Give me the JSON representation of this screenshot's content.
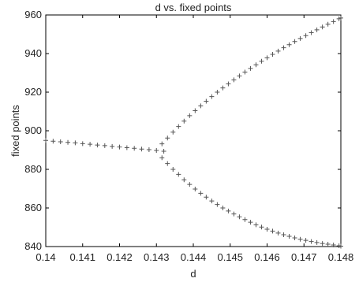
{
  "chart_data": {
    "type": "scatter",
    "title": "d vs. fixed points",
    "xlabel": "d",
    "ylabel": "fixed points",
    "xlim": [
      0.14,
      0.148
    ],
    "ylim": [
      840,
      960
    ],
    "xticks": [
      0.14,
      0.141,
      0.142,
      0.143,
      0.144,
      0.145,
      0.146,
      0.147,
      0.148
    ],
    "xtick_labels": [
      "0.14",
      "0.141",
      "0.142",
      "0.143",
      "0.144",
      "0.145",
      "0.146",
      "0.147",
      "0.148"
    ],
    "yticks": [
      840,
      860,
      880,
      900,
      920,
      940,
      960
    ],
    "ytick_labels": [
      "840",
      "860",
      "880",
      "900",
      "920",
      "940",
      "960"
    ],
    "grid": false,
    "marker": "+",
    "marker_color": "#555555",
    "series": [
      {
        "x": [
          0.14,
          0.1402,
          0.1404,
          0.1406,
          0.1408,
          0.141,
          0.1412,
          0.1414,
          0.1416,
          0.1418,
          0.142,
          0.1422,
          0.1424,
          0.1426,
          0.1428,
          0.143,
          0.1432
        ],
        "y": [
          895.0,
          894.6,
          894.3,
          894.0,
          893.7,
          893.3,
          893.0,
          892.6,
          892.3,
          891.9,
          891.6,
          891.2,
          890.9,
          890.5,
          890.2,
          889.8,
          889.4
        ]
      },
      {
        "x": [
          0.14315,
          0.1433,
          0.14345,
          0.1436,
          0.14375,
          0.1439,
          0.14405,
          0.1442,
          0.14435,
          0.1445,
          0.14465,
          0.1448,
          0.14495,
          0.1451,
          0.14525,
          0.1454,
          0.14555,
          0.1457,
          0.14585,
          0.146,
          0.14615,
          0.1463,
          0.14645,
          0.1466,
          0.14675,
          0.1469,
          0.14705,
          0.1472,
          0.14735,
          0.1475,
          0.14765,
          0.1478,
          0.14795,
          0.148
        ],
        "y": [
          893.2,
          896.2,
          899.3,
          902.2,
          905.0,
          907.8,
          910.4,
          912.9,
          915.3,
          917.7,
          920.0,
          922.2,
          924.3,
          926.4,
          928.4,
          930.4,
          932.3,
          934.2,
          936.0,
          937.8,
          939.6,
          941.3,
          943.0,
          944.6,
          946.2,
          947.8,
          949.3,
          950.8,
          952.3,
          953.8,
          955.2,
          956.6,
          958.0,
          958.4
        ]
      },
      {
        "x": [
          0.14315,
          0.1433,
          0.14345,
          0.1436,
          0.14375,
          0.1439,
          0.14405,
          0.1442,
          0.14435,
          0.1445,
          0.14465,
          0.1448,
          0.14495,
          0.1451,
          0.14525,
          0.1454,
          0.14555,
          0.1457,
          0.14585,
          0.146,
          0.14615,
          0.1463,
          0.14645,
          0.1466,
          0.14675,
          0.1469,
          0.14705,
          0.1472,
          0.14735,
          0.1475,
          0.14765,
          0.1478,
          0.14795,
          0.148
        ],
        "y": [
          886.0,
          883.0,
          880.0,
          877.4,
          874.6,
          872.2,
          869.8,
          867.6,
          865.6,
          863.6,
          861.8,
          860.0,
          858.4,
          856.9,
          855.4,
          854.0,
          852.6,
          851.3,
          850.1,
          849.0,
          848.0,
          847.0,
          846.1,
          845.3,
          844.5,
          843.8,
          843.2,
          842.6,
          842.1,
          841.6,
          841.2,
          840.8,
          840.4,
          840.2
        ]
      }
    ]
  }
}
